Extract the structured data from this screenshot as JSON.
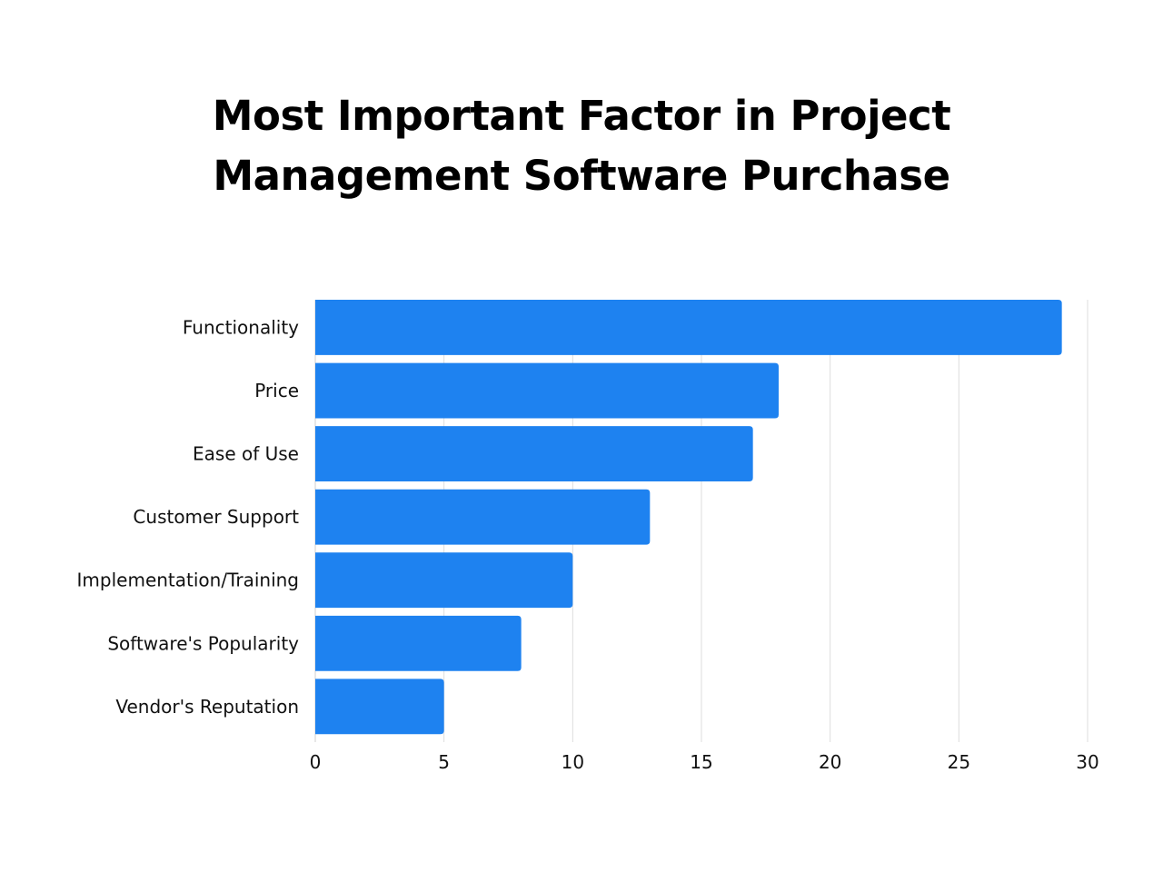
{
  "chart_data": {
    "type": "bar",
    "orientation": "horizontal",
    "title_lines": [
      "Most Important Factor in Project",
      "Management Software Purchase"
    ],
    "title": "Most Important Factor in Project Management Software Purchase",
    "categories": [
      "Functionality",
      "Price",
      "Ease of Use",
      "Customer Support",
      "Implementation/Training",
      "Software's Popularity",
      "Vendor's Reputation"
    ],
    "values": [
      29,
      18,
      17,
      13,
      10,
      8,
      5
    ],
    "xlabel": "",
    "ylabel": "",
    "xlim": [
      0,
      30
    ],
    "xticks": [
      0,
      5,
      10,
      15,
      20,
      25,
      30
    ],
    "xtick_labels": [
      "0",
      "5",
      "10",
      "15",
      "20",
      "25",
      "30"
    ],
    "grid": "vertical",
    "legend": "none",
    "bar_color": "#1E82F0",
    "grid_color": "#DDDDDD"
  }
}
